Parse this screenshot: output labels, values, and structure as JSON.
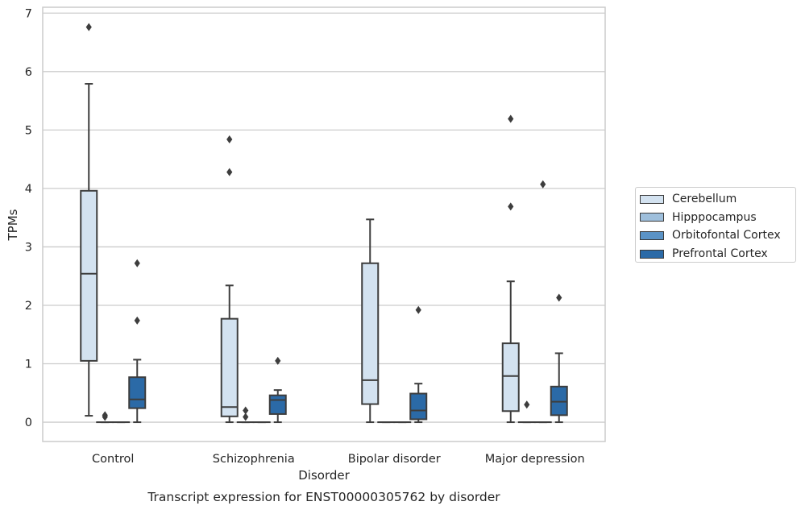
{
  "chart_data": {
    "type": "box",
    "title": "Transcript expression for ENST00000305762 by disorder",
    "xlabel": "Disorder",
    "ylabel": "TPMs",
    "categories": [
      "Control",
      "Schizophrenia",
      "Bipolar disorder",
      "Major depression"
    ],
    "ylim": [
      -0.33,
      7.1
    ],
    "yticks": [
      0,
      1,
      2,
      3,
      4,
      5,
      6,
      7
    ],
    "grid": "horizontal",
    "legend_position": "right",
    "series": [
      {
        "name": "Cerebellum",
        "color": "#d3e2f0",
        "boxes": [
          {
            "q1": 1.05,
            "median": 2.54,
            "q3": 3.96,
            "whisker_low": 0.11,
            "whisker_high": 5.79,
            "outliers": [
              6.76
            ]
          },
          {
            "q1": 0.1,
            "median": 0.26,
            "q3": 1.77,
            "whisker_low": 0.0,
            "whisker_high": 2.34,
            "outliers": [
              4.84,
              4.28
            ]
          },
          {
            "q1": 0.31,
            "median": 0.72,
            "q3": 2.72,
            "whisker_low": 0.0,
            "whisker_high": 3.47,
            "outliers": []
          },
          {
            "q1": 0.19,
            "median": 0.79,
            "q3": 1.35,
            "whisker_low": 0.0,
            "whisker_high": 2.41,
            "outliers": [
              5.19,
              3.69
            ]
          }
        ]
      },
      {
        "name": "Hipppocampus",
        "color": "#9ebfdc",
        "boxes": [
          {
            "q1": 0.0,
            "median": 0.0,
            "q3": 0.0,
            "whisker_low": 0.0,
            "whisker_high": 0.0,
            "outliers": [
              0.09,
              0.12
            ]
          },
          {
            "q1": 0.0,
            "median": 0.0,
            "q3": 0.0,
            "whisker_low": 0.0,
            "whisker_high": 0.0,
            "outliers": [
              0.2,
              0.09
            ]
          },
          {
            "q1": 0.0,
            "median": 0.0,
            "q3": 0.0,
            "whisker_low": 0.0,
            "whisker_high": 0.0,
            "outliers": []
          },
          {
            "q1": 0.0,
            "median": 0.0,
            "q3": 0.0,
            "whisker_low": 0.0,
            "whisker_high": 0.0,
            "outliers": [
              0.3
            ]
          }
        ]
      },
      {
        "name": "Orbitofontal Cortex",
        "color": "#5b93c6",
        "boxes": [
          {
            "q1": 0.0,
            "median": 0.0,
            "q3": 0.0,
            "whisker_low": 0.0,
            "whisker_high": 0.0,
            "outliers": []
          },
          {
            "q1": 0.0,
            "median": 0.0,
            "q3": 0.0,
            "whisker_low": 0.0,
            "whisker_high": 0.0,
            "outliers": []
          },
          {
            "q1": 0.0,
            "median": 0.0,
            "q3": 0.0,
            "whisker_low": 0.0,
            "whisker_high": 0.0,
            "outliers": []
          },
          {
            "q1": 0.0,
            "median": 0.0,
            "q3": 0.0,
            "whisker_low": 0.0,
            "whisker_high": 0.0,
            "outliers": [
              4.07
            ]
          }
        ]
      },
      {
        "name": "Prefrontal Cortex",
        "color": "#2b6aa7",
        "boxes": [
          {
            "q1": 0.24,
            "median": 0.39,
            "q3": 0.77,
            "whisker_low": 0.0,
            "whisker_high": 1.07,
            "outliers": [
              2.72,
              1.74
            ]
          },
          {
            "q1": 0.14,
            "median": 0.38,
            "q3": 0.46,
            "whisker_low": 0.0,
            "whisker_high": 0.55,
            "outliers": [
              1.05
            ]
          },
          {
            "q1": 0.05,
            "median": 0.2,
            "q3": 0.49,
            "whisker_low": 0.0,
            "whisker_high": 0.66,
            "outliers": [
              1.92
            ]
          },
          {
            "q1": 0.12,
            "median": 0.35,
            "q3": 0.61,
            "whisker_low": 0.0,
            "whisker_high": 1.18,
            "outliers": [
              2.13
            ]
          }
        ]
      }
    ]
  }
}
